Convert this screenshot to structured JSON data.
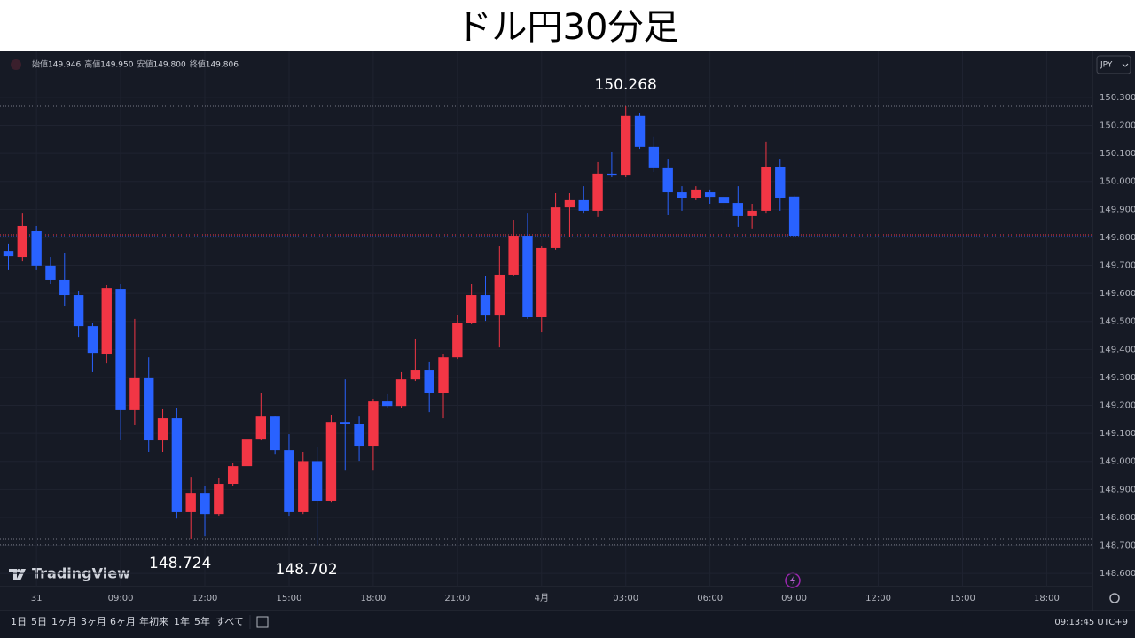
{
  "chart_data": {
    "type": "candlestick",
    "title": "ドル円30分足",
    "currency": "JPY",
    "ohlc_legend": [
      {
        "label": "始値",
        "value": "149.946"
      },
      {
        "label": "高値",
        "value": "149.950"
      },
      {
        "label": "安値",
        "value": "149.800"
      },
      {
        "label": "終値",
        "value": "149.806"
      }
    ],
    "up_color": "#f23645",
    "down_color": "#2962ff",
    "grid": true,
    "x": [
      5,
      5.5,
      6,
      6.5,
      7,
      7.5,
      8,
      8.5,
      9,
      9.5,
      10,
      10.5,
      11,
      11.5,
      12,
      12.5,
      13,
      13.5,
      14,
      14.5,
      15,
      15.5,
      16,
      16.5,
      17,
      17.5,
      18,
      18.5,
      19,
      19.5,
      20,
      20.5,
      21,
      21.5,
      22,
      22.5,
      23,
      23.5,
      24,
      24.5,
      25,
      25.5,
      26,
      26.5,
      27,
      27.5,
      28,
      28.5,
      29,
      29.5,
      30,
      30.5,
      31,
      31.5,
      32,
      32.5,
      33
    ],
    "open": [
      149.752,
      149.73,
      149.822,
      149.699,
      149.648,
      149.594,
      149.483,
      149.382,
      149.616,
      149.183,
      149.297,
      149.075,
      149.154,
      148.819,
      148.888,
      148.812,
      148.92,
      148.983,
      149.081,
      149.16,
      149.04,
      148.819,
      149.001,
      148.86,
      149.141,
      149.135,
      149.056,
      149.214,
      149.198,
      149.293,
      149.325,
      149.246,
      149.372,
      149.496,
      149.594,
      149.521,
      149.667,
      149.806,
      149.515,
      149.762,
      149.907,
      149.933,
      149.895,
      150.028,
      150.021,
      150.234,
      150.123,
      150.047,
      149.961,
      149.939,
      149.961,
      149.945,
      149.923,
      149.876,
      149.895,
      150.053,
      149.946
    ],
    "high": [
      149.778,
      149.888,
      149.841,
      149.73,
      149.746,
      149.61,
      149.493,
      149.629,
      149.635,
      149.509,
      149.372,
      149.186,
      149.192,
      148.945,
      148.913,
      148.939,
      148.996,
      149.145,
      149.246,
      149.16,
      149.097,
      149.034,
      149.05,
      149.167,
      149.293,
      149.16,
      149.224,
      149.24,
      149.319,
      149.436,
      149.357,
      149.382,
      149.524,
      149.635,
      149.661,
      149.768,
      149.863,
      149.888,
      149.768,
      149.958,
      149.958,
      149.983,
      150.069,
      150.104,
      150.268,
      150.246,
      150.158,
      150.078,
      149.983,
      149.983,
      149.971,
      149.952,
      149.983,
      149.92,
      150.142,
      150.078,
      149.95
    ],
    "low": [
      149.683,
      149.714,
      149.683,
      149.635,
      149.556,
      149.445,
      149.319,
      149.35,
      149.075,
      149.129,
      149.034,
      149.034,
      148.796,
      148.724,
      148.733,
      148.806,
      148.913,
      148.955,
      149.075,
      149.027,
      148.806,
      148.812,
      148.702,
      148.853,
      148.97,
      149.002,
      148.97,
      149.192,
      149.192,
      149.287,
      149.176,
      149.154,
      149.366,
      149.49,
      149.502,
      149.407,
      149.661,
      149.509,
      149.461,
      149.756,
      149.8,
      149.888,
      149.873,
      150.015,
      150.015,
      150.116,
      150.034,
      149.879,
      149.895,
      149.933,
      149.92,
      149.888,
      149.838,
      149.832,
      149.888,
      149.895,
      149.8
    ],
    "close": [
      149.733,
      149.841,
      149.699,
      149.648,
      149.594,
      149.483,
      149.388,
      149.619,
      149.183,
      149.297,
      149.075,
      149.154,
      148.819,
      148.888,
      148.812,
      148.92,
      148.983,
      149.081,
      149.16,
      149.04,
      148.819,
      149.001,
      148.86,
      149.141,
      149.135,
      149.056,
      149.214,
      149.198,
      149.293,
      149.325,
      149.246,
      149.372,
      149.496,
      149.594,
      149.521,
      149.667,
      149.806,
      149.515,
      149.762,
      149.907,
      149.933,
      149.895,
      150.028,
      150.021,
      150.234,
      150.123,
      150.047,
      149.961,
      149.939,
      149.971,
      149.945,
      149.923,
      149.876,
      149.895,
      150.053,
      149.942,
      149.806
    ],
    "annotations": [
      150.268,
      148.724,
      148.702
    ],
    "xlim": [
      4.7,
      43.63
    ],
    "xticks": [
      {
        "value": 6,
        "label": "31"
      },
      {
        "value": 9,
        "label": "09:00"
      },
      {
        "value": 12,
        "label": "12:00"
      },
      {
        "value": 15,
        "label": "15:00"
      },
      {
        "value": 18,
        "label": "18:00"
      },
      {
        "value": 21,
        "label": "21:00"
      },
      {
        "value": 24,
        "label": "4月"
      },
      {
        "value": 27,
        "label": "03:00"
      },
      {
        "value": 30,
        "label": "06:00"
      },
      {
        "value": 33,
        "label": "09:00"
      },
      {
        "value": 36,
        "label": "12:00"
      },
      {
        "value": 39,
        "label": "15:00"
      },
      {
        "value": 42,
        "label": "18:00"
      }
    ],
    "ylim": [
      148.553,
      150.458
    ],
    "yticks": [
      {
        "value": 148.6,
        "label": "148.600"
      },
      {
        "value": 148.7,
        "label": "148.700"
      },
      {
        "value": 148.8,
        "label": "148.800"
      },
      {
        "value": 148.9,
        "label": "148.900"
      },
      {
        "value": 149.0,
        "label": "149.000"
      },
      {
        "value": 149.1,
        "label": "149.100"
      },
      {
        "value": 149.2,
        "label": "149.200"
      },
      {
        "value": 149.3,
        "label": "149.300"
      },
      {
        "value": 149.4,
        "label": "149.400"
      },
      {
        "value": 149.5,
        "label": "149.500"
      },
      {
        "value": 149.6,
        "label": "149.600"
      },
      {
        "value": 149.7,
        "label": "149.700"
      },
      {
        "value": 149.8,
        "label": "149.800"
      },
      {
        "value": 149.9,
        "label": "149.900"
      },
      {
        "value": 150.0,
        "label": "150.000"
      },
      {
        "value": 150.1,
        "label": "150.100"
      },
      {
        "value": 150.2,
        "label": "150.200"
      },
      {
        "value": 150.3,
        "label": "150.300"
      }
    ]
  },
  "ui": {
    "logo": "TradingView",
    "ranges": [
      "1日",
      "5日",
      "1ヶ月",
      "3ヶ月",
      "6ヶ月",
      "年初来",
      "1年",
      "5年",
      "すべて"
    ],
    "clock": "09:13:45 UTC+9"
  }
}
